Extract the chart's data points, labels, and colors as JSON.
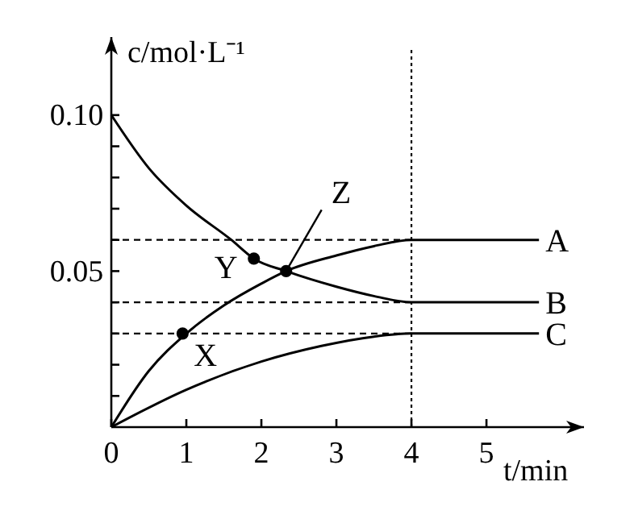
{
  "chart_data": {
    "type": "line",
    "xlabel": "t/min",
    "ylabel": "c/mol·L⁻¹",
    "xlim": [
      0,
      6.3
    ],
    "ylim": [
      0,
      0.125
    ],
    "xticks": [
      0,
      1,
      2,
      3,
      4,
      5
    ],
    "yticks": [
      {
        "value": 0.01,
        "label": null
      },
      {
        "value": 0.02,
        "label": null
      },
      {
        "value": 0.03,
        "label": null
      },
      {
        "value": 0.04,
        "label": null
      },
      0.05,
      {
        "value": 0.06,
        "label": null
      },
      {
        "value": 0.07,
        "label": null
      },
      {
        "value": 0.08,
        "label": null
      },
      {
        "value": 0.09,
        "label": null
      },
      {
        "value": 0.1,
        "label": "0.10"
      }
    ],
    "series": [
      {
        "name": "A",
        "color": "#000000",
        "x": [
          0,
          0.5,
          1,
          1.5,
          2,
          2.33,
          3,
          3.5,
          4,
          5.7
        ],
        "values": [
          0,
          0.018,
          0.03,
          0.039,
          0.046,
          0.05,
          0.055,
          0.058,
          0.06,
          0.06
        ]
      },
      {
        "name": "B",
        "color": "#000000",
        "x": [
          0,
          0.5,
          1,
          1.6,
          1.9,
          2.33,
          3,
          3.5,
          4,
          5.7
        ],
        "values": [
          0.1,
          0.083,
          0.071,
          0.06,
          0.054,
          0.05,
          0.045,
          0.042,
          0.04,
          0.04
        ]
      },
      {
        "name": "C",
        "color": "#000000",
        "x": [
          0,
          1,
          2,
          2.8,
          3.5,
          4,
          5.7
        ],
        "values": [
          0,
          0.012,
          0.021,
          0.026,
          0.029,
          0.03,
          0.03
        ]
      },
      {
        "type": "scatter",
        "color": "#000000",
        "marker": "circle",
        "x": [
          0.95,
          1.9,
          2.33
        ],
        "values": [
          0.03,
          0.054,
          0.05
        ]
      }
    ],
    "ref_lines": [
      {
        "axis": "y",
        "value": 0.06,
        "line_style": "dashed"
      },
      {
        "axis": "y",
        "value": 0.04,
        "line_style": "dashed"
      },
      {
        "axis": "y",
        "value": 0.03,
        "line_style": "dashed"
      },
      {
        "axis": "x",
        "value": 4,
        "line_style": "dotted"
      }
    ],
    "annotations": [
      {
        "text": "X",
        "x": 0.95,
        "y": 0.03
      },
      {
        "text": "Y",
        "x": 1.9,
        "y": 0.054
      },
      {
        "text": "Z",
        "x": 2.33,
        "y": 0.05
      }
    ],
    "grid": false
  }
}
